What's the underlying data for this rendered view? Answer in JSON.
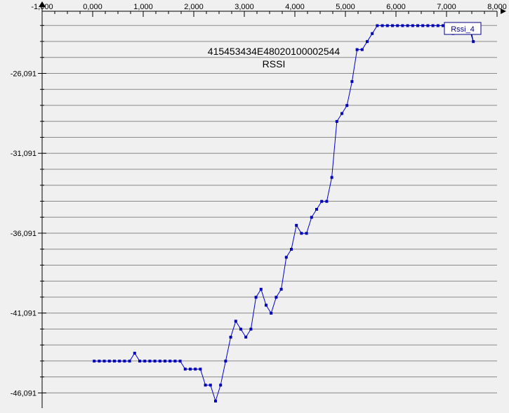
{
  "chart_data": {
    "type": "line",
    "title": "415453434E48020100002544",
    "subtitle": "RSSI",
    "xlabel": "",
    "ylabel": "",
    "xlim": [
      -1.0,
      8.0
    ],
    "ylim": [
      -46.6,
      -22.2
    ],
    "x_ticks": [
      -1.0,
      0.0,
      1.0,
      2.0,
      3.0,
      4.0,
      5.0,
      6.0,
      7.0,
      8.0
    ],
    "x_tick_labels": [
      "-1,000",
      "0,000",
      "1,000",
      "2,000",
      "3,000",
      "4,000",
      "5,000",
      "6,000",
      "7,000",
      "8,000"
    ],
    "y_ticks": [
      -26.091,
      -31.091,
      -36.091,
      -41.091,
      -46.091
    ],
    "y_tick_labels": [
      "-26,091",
      "-31,091",
      "-36,091",
      "-41,091",
      "-46,091"
    ],
    "grid": true,
    "legend": "top-right",
    "series": [
      {
        "name": "Rssi_4",
        "color": "#0000cc",
        "x": [
          0.03,
          0.13,
          0.23,
          0.33,
          0.43,
          0.53,
          0.63,
          0.73,
          0.83,
          0.93,
          1.03,
          1.13,
          1.23,
          1.33,
          1.43,
          1.53,
          1.63,
          1.73,
          1.83,
          1.93,
          2.03,
          2.13,
          2.23,
          2.33,
          2.43,
          2.53,
          2.63,
          2.73,
          2.83,
          2.93,
          3.03,
          3.13,
          3.23,
          3.33,
          3.43,
          3.53,
          3.63,
          3.73,
          3.83,
          3.93,
          4.03,
          4.13,
          4.23,
          4.33,
          4.43,
          4.53,
          4.63,
          4.73,
          4.83,
          4.93,
          5.03,
          5.13,
          5.23,
          5.33,
          5.43,
          5.53,
          5.63,
          5.73,
          5.83,
          5.93,
          6.03,
          6.13,
          6.23,
          6.33,
          6.43,
          6.53,
          6.63,
          6.73,
          6.83,
          6.93,
          7.03,
          7.13,
          7.23,
          7.33,
          7.43,
          7.53
        ],
        "y": [
          -44.1,
          -44.1,
          -44.1,
          -44.1,
          -44.1,
          -44.1,
          -44.1,
          -44.1,
          -43.6,
          -44.1,
          -44.1,
          -44.1,
          -44.1,
          -44.1,
          -44.1,
          -44.1,
          -44.1,
          -44.1,
          -44.6,
          -44.6,
          -44.6,
          -44.6,
          -45.6,
          -45.6,
          -46.6,
          -45.6,
          -44.1,
          -42.6,
          -41.6,
          -42.1,
          -42.6,
          -42.1,
          -40.1,
          -39.6,
          -40.6,
          -41.1,
          -40.1,
          -39.6,
          -37.6,
          -37.1,
          -35.6,
          -36.1,
          -36.1,
          -35.1,
          -34.6,
          -34.1,
          -34.1,
          -32.6,
          -29.1,
          -28.6,
          -28.1,
          -26.6,
          -24.6,
          -24.6,
          -24.1,
          -23.6,
          -23.1,
          -23.1,
          -23.1,
          -23.1,
          -23.1,
          -23.1,
          -23.1,
          -23.1,
          -23.1,
          -23.1,
          -23.1,
          -23.1,
          -23.1,
          -23.1,
          -23.1,
          -23.6,
          -23.1,
          -23.1,
          -23.1,
          -24.1
        ]
      }
    ]
  }
}
